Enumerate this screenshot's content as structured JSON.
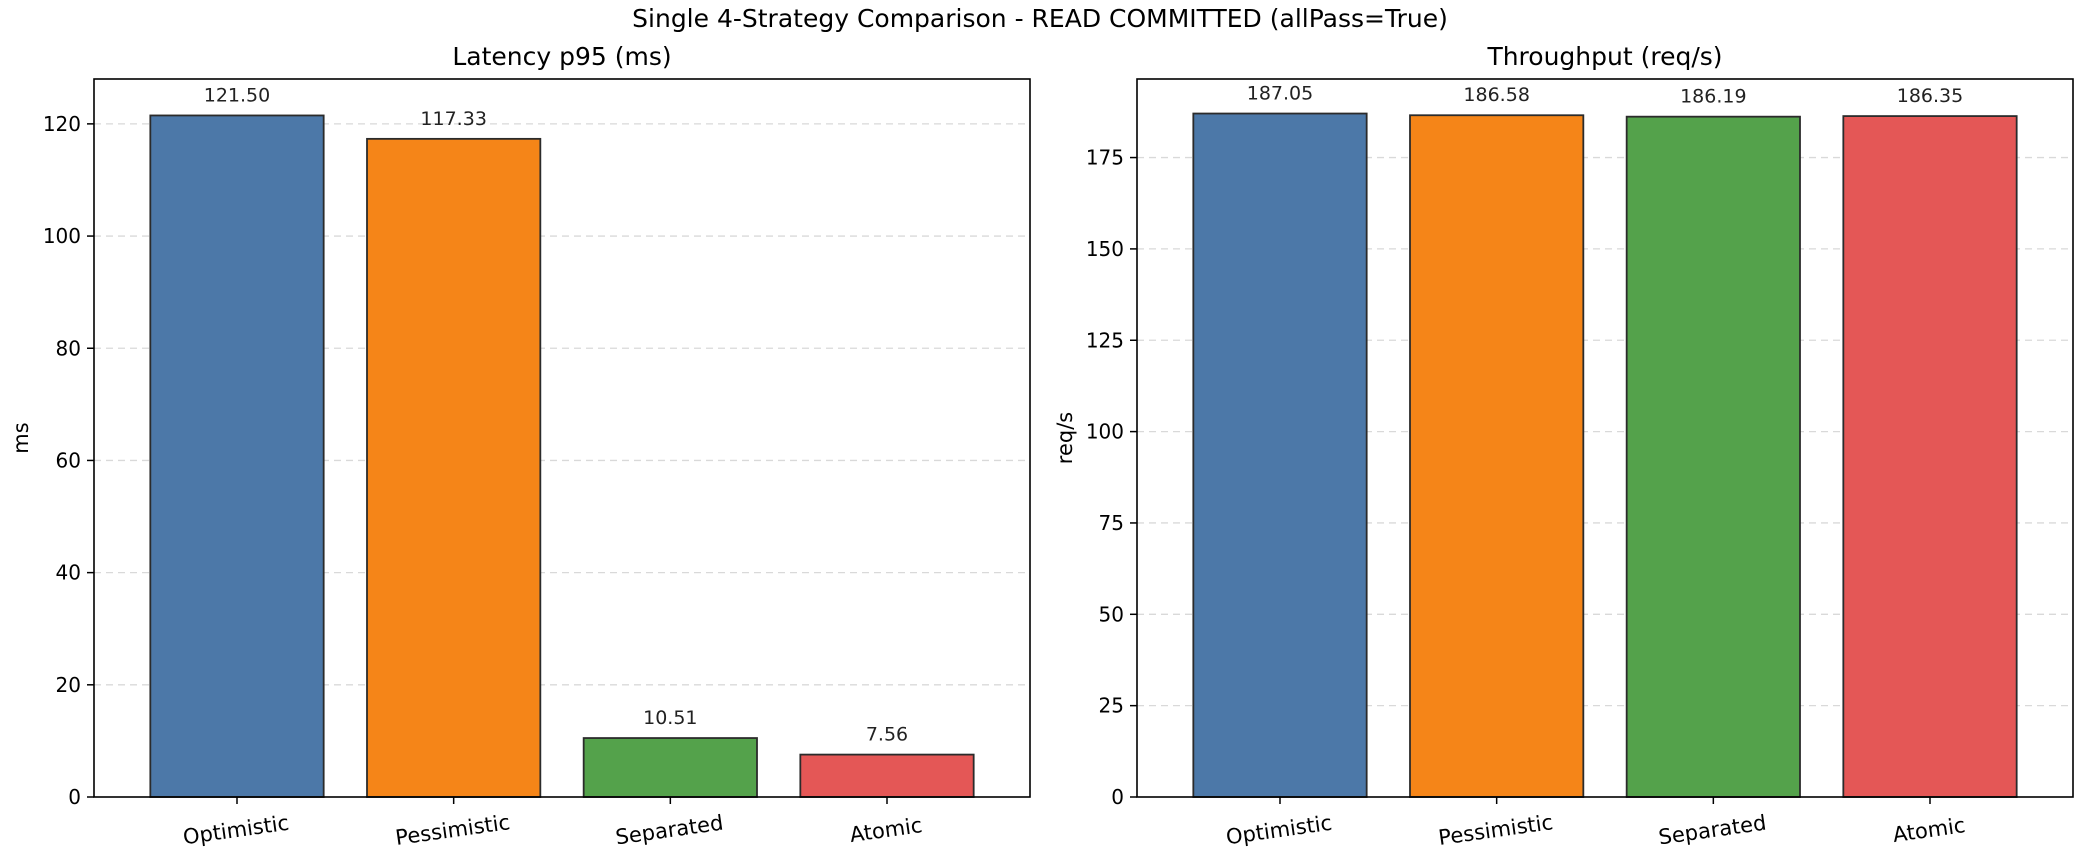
{
  "figure": {
    "title": "Single 4-Strategy Comparison - READ COMMITTED (allPass=True)"
  },
  "chart_data": [
    {
      "type": "bar",
      "title": "Latency p95 (ms)",
      "xlabel": "",
      "ylabel": "ms",
      "categories": [
        "Optimistic",
        "Pessimistic",
        "Separated",
        "Atomic"
      ],
      "values": [
        121.5,
        117.33,
        10.51,
        7.56
      ],
      "value_labels": [
        "121.50",
        "117.33",
        "10.51",
        "7.56"
      ],
      "colors": [
        "#4c78a8",
        "#f58518",
        "#54a24b",
        "#e45756"
      ],
      "ylim": [
        0,
        128
      ],
      "yticks": [
        0,
        20,
        40,
        60,
        80,
        100,
        120
      ],
      "grid": "y-dashed",
      "legend": "none"
    },
    {
      "type": "bar",
      "title": "Throughput (req/s)",
      "xlabel": "",
      "ylabel": "req/s",
      "categories": [
        "Optimistic",
        "Pessimistic",
        "Separated",
        "Atomic"
      ],
      "values": [
        187.05,
        186.58,
        186.19,
        186.35
      ],
      "value_labels": [
        "187.05",
        "186.58",
        "186.19",
        "186.35"
      ],
      "colors": [
        "#4c78a8",
        "#f58518",
        "#54a24b",
        "#e45756"
      ],
      "ylim": [
        0,
        196.5
      ],
      "yticks": [
        0,
        25,
        50,
        75,
        100,
        125,
        150,
        175
      ],
      "grid": "y-dashed",
      "legend": "none"
    }
  ]
}
